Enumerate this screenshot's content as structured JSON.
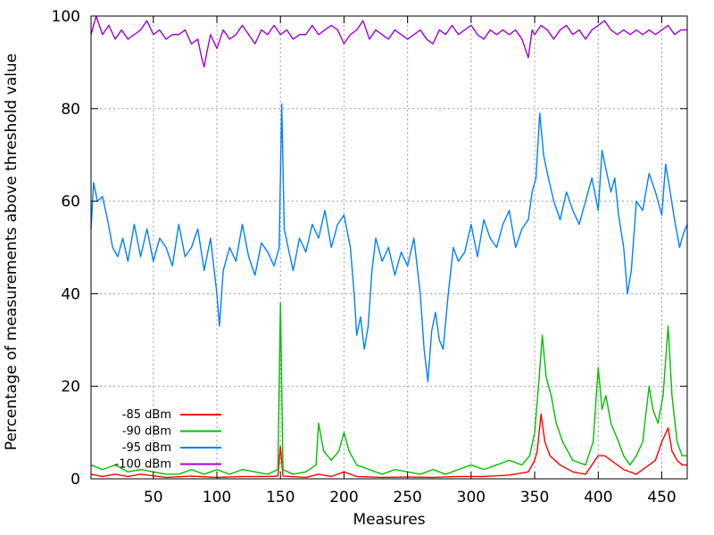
{
  "chart_data": {
    "type": "line",
    "xlabel": "Measures",
    "ylabel": "Percentage of measurements above threshold value",
    "xlim": [
      1,
      470
    ],
    "ylim": [
      0,
      100
    ],
    "x_ticks": [
      50,
      100,
      150,
      200,
      250,
      300,
      350,
      400,
      450
    ],
    "y_ticks": [
      0,
      20,
      40,
      60,
      80,
      100
    ],
    "grid": true,
    "legend_position": "bottom-left",
    "series": [
      {
        "name": "-85 dBm",
        "color": "#ff0000",
        "points": [
          [
            1,
            1
          ],
          [
            10,
            0.5
          ],
          [
            20,
            1
          ],
          [
            30,
            0.5
          ],
          [
            40,
            1
          ],
          [
            60,
            0.3
          ],
          [
            80,
            0.6
          ],
          [
            100,
            0.3
          ],
          [
            120,
            0.5
          ],
          [
            140,
            0.5
          ],
          [
            148,
            0.6
          ],
          [
            150,
            7
          ],
          [
            152,
            0.6
          ],
          [
            170,
            0.3
          ],
          [
            180,
            1
          ],
          [
            190,
            0.5
          ],
          [
            200,
            1.5
          ],
          [
            210,
            0.5
          ],
          [
            230,
            0.3
          ],
          [
            250,
            0.4
          ],
          [
            270,
            0.3
          ],
          [
            290,
            0.5
          ],
          [
            310,
            0.5
          ],
          [
            330,
            0.8
          ],
          [
            345,
            1.5
          ],
          [
            350,
            4
          ],
          [
            352,
            6
          ],
          [
            355,
            14
          ],
          [
            358,
            8
          ],
          [
            362,
            5
          ],
          [
            370,
            3
          ],
          [
            380,
            1.5
          ],
          [
            390,
            1
          ],
          [
            400,
            5
          ],
          [
            405,
            5
          ],
          [
            410,
            4
          ],
          [
            415,
            3
          ],
          [
            420,
            2
          ],
          [
            430,
            1
          ],
          [
            440,
            3
          ],
          [
            445,
            4
          ],
          [
            450,
            8
          ],
          [
            455,
            11
          ],
          [
            458,
            6
          ],
          [
            462,
            4
          ],
          [
            466,
            3
          ],
          [
            470,
            3
          ]
        ]
      },
      {
        "name": "-90 dBm",
        "color": "#00c000",
        "points": [
          [
            1,
            3
          ],
          [
            10,
            2
          ],
          [
            20,
            3
          ],
          [
            30,
            1.5
          ],
          [
            40,
            2
          ],
          [
            50,
            1.5
          ],
          [
            60,
            1
          ],
          [
            70,
            1
          ],
          [
            80,
            2
          ],
          [
            90,
            1
          ],
          [
            100,
            2
          ],
          [
            110,
            1
          ],
          [
            120,
            2
          ],
          [
            130,
            1.5
          ],
          [
            140,
            1
          ],
          [
            148,
            2
          ],
          [
            150,
            38
          ],
          [
            152,
            2
          ],
          [
            160,
            1
          ],
          [
            170,
            1.5
          ],
          [
            178,
            3
          ],
          [
            180,
            12
          ],
          [
            184,
            6
          ],
          [
            190,
            4
          ],
          [
            196,
            6
          ],
          [
            200,
            10
          ],
          [
            204,
            6
          ],
          [
            210,
            3
          ],
          [
            220,
            2
          ],
          [
            230,
            1
          ],
          [
            240,
            2
          ],
          [
            250,
            1.5
          ],
          [
            260,
            1
          ],
          [
            270,
            2
          ],
          [
            280,
            1
          ],
          [
            290,
            2
          ],
          [
            300,
            3
          ],
          [
            310,
            2
          ],
          [
            320,
            3
          ],
          [
            330,
            4
          ],
          [
            340,
            3
          ],
          [
            346,
            5
          ],
          [
            350,
            10
          ],
          [
            353,
            20
          ],
          [
            356,
            31
          ],
          [
            359,
            22
          ],
          [
            363,
            18
          ],
          [
            367,
            12
          ],
          [
            372,
            8
          ],
          [
            380,
            4
          ],
          [
            390,
            3
          ],
          [
            396,
            8
          ],
          [
            400,
            24
          ],
          [
            403,
            15
          ],
          [
            406,
            18
          ],
          [
            410,
            12
          ],
          [
            416,
            8
          ],
          [
            420,
            5
          ],
          [
            425,
            3
          ],
          [
            430,
            5
          ],
          [
            435,
            8
          ],
          [
            440,
            20
          ],
          [
            443,
            15
          ],
          [
            447,
            12
          ],
          [
            451,
            18
          ],
          [
            455,
            33
          ],
          [
            458,
            18
          ],
          [
            462,
            8
          ],
          [
            466,
            5
          ],
          [
            470,
            5
          ]
        ]
      },
      {
        "name": "-95 dBm",
        "color": "#0080ff",
        "points": [
          [
            1,
            54
          ],
          [
            3,
            64
          ],
          [
            6,
            60
          ],
          [
            10,
            61
          ],
          [
            14,
            56
          ],
          [
            18,
            50
          ],
          [
            22,
            48
          ],
          [
            26,
            52
          ],
          [
            30,
            47
          ],
          [
            35,
            55
          ],
          [
            40,
            48
          ],
          [
            45,
            54
          ],
          [
            50,
            47
          ],
          [
            55,
            52
          ],
          [
            60,
            50
          ],
          [
            65,
            46
          ],
          [
            70,
            55
          ],
          [
            75,
            48
          ],
          [
            80,
            50
          ],
          [
            85,
            54
          ],
          [
            90,
            45
          ],
          [
            95,
            52
          ],
          [
            100,
            40
          ],
          [
            102,
            33
          ],
          [
            105,
            45
          ],
          [
            110,
            50
          ],
          [
            115,
            47
          ],
          [
            120,
            55
          ],
          [
            125,
            48
          ],
          [
            130,
            44
          ],
          [
            135,
            51
          ],
          [
            140,
            49
          ],
          [
            145,
            46
          ],
          [
            149,
            50
          ],
          [
            151,
            81
          ],
          [
            153,
            54
          ],
          [
            156,
            50
          ],
          [
            160,
            45
          ],
          [
            165,
            52
          ],
          [
            170,
            49
          ],
          [
            175,
            55
          ],
          [
            180,
            52
          ],
          [
            185,
            58
          ],
          [
            190,
            50
          ],
          [
            195,
            55
          ],
          [
            200,
            57
          ],
          [
            205,
            50
          ],
          [
            208,
            40
          ],
          [
            210,
            31
          ],
          [
            213,
            35
          ],
          [
            216,
            28
          ],
          [
            219,
            33
          ],
          [
            222,
            45
          ],
          [
            225,
            52
          ],
          [
            230,
            47
          ],
          [
            235,
            50
          ],
          [
            240,
            44
          ],
          [
            245,
            49
          ],
          [
            250,
            46
          ],
          [
            255,
            52
          ],
          [
            260,
            40
          ],
          [
            263,
            28
          ],
          [
            266,
            21
          ],
          [
            269,
            32
          ],
          [
            272,
            36
          ],
          [
            275,
            30
          ],
          [
            278,
            28
          ],
          [
            282,
            40
          ],
          [
            286,
            50
          ],
          [
            290,
            47
          ],
          [
            295,
            49
          ],
          [
            300,
            55
          ],
          [
            305,
            48
          ],
          [
            310,
            56
          ],
          [
            315,
            52
          ],
          [
            320,
            50
          ],
          [
            325,
            55
          ],
          [
            330,
            58
          ],
          [
            335,
            50
          ],
          [
            340,
            54
          ],
          [
            345,
            56
          ],
          [
            348,
            62
          ],
          [
            351,
            65
          ],
          [
            354,
            79
          ],
          [
            357,
            70
          ],
          [
            360,
            66
          ],
          [
            365,
            60
          ],
          [
            370,
            56
          ],
          [
            375,
            62
          ],
          [
            380,
            58
          ],
          [
            385,
            55
          ],
          [
            390,
            60
          ],
          [
            395,
            65
          ],
          [
            400,
            58
          ],
          [
            403,
            71
          ],
          [
            406,
            67
          ],
          [
            410,
            62
          ],
          [
            413,
            65
          ],
          [
            416,
            57
          ],
          [
            420,
            50
          ],
          [
            423,
            40
          ],
          [
            426,
            45
          ],
          [
            430,
            60
          ],
          [
            435,
            58
          ],
          [
            440,
            66
          ],
          [
            445,
            62
          ],
          [
            450,
            57
          ],
          [
            453,
            68
          ],
          [
            456,
            63
          ],
          [
            460,
            56
          ],
          [
            464,
            50
          ],
          [
            467,
            53
          ],
          [
            470,
            55
          ]
        ]
      },
      {
        "name": "-100 dBm",
        "color": "#a000e0",
        "points": [
          [
            1,
            96
          ],
          [
            5,
            100
          ],
          [
            10,
            96
          ],
          [
            15,
            98
          ],
          [
            20,
            95
          ],
          [
            25,
            97
          ],
          [
            30,
            95
          ],
          [
            35,
            96
          ],
          [
            40,
            97
          ],
          [
            45,
            99
          ],
          [
            50,
            96
          ],
          [
            55,
            97
          ],
          [
            60,
            95
          ],
          [
            65,
            96
          ],
          [
            70,
            96
          ],
          [
            75,
            97
          ],
          [
            80,
            94
          ],
          [
            85,
            95
          ],
          [
            88,
            91
          ],
          [
            90,
            89
          ],
          [
            92,
            92
          ],
          [
            95,
            96
          ],
          [
            100,
            93
          ],
          [
            105,
            97
          ],
          [
            110,
            95
          ],
          [
            115,
            96
          ],
          [
            120,
            98
          ],
          [
            125,
            96
          ],
          [
            130,
            94
          ],
          [
            135,
            97
          ],
          [
            140,
            96
          ],
          [
            145,
            98
          ],
          [
            150,
            96
          ],
          [
            155,
            97
          ],
          [
            160,
            95
          ],
          [
            165,
            96
          ],
          [
            170,
            96
          ],
          [
            175,
            98
          ],
          [
            180,
            96
          ],
          [
            185,
            97
          ],
          [
            190,
            98
          ],
          [
            195,
            97
          ],
          [
            200,
            94
          ],
          [
            205,
            96
          ],
          [
            210,
            97
          ],
          [
            215,
            99
          ],
          [
            220,
            95
          ],
          [
            225,
            97
          ],
          [
            230,
            96
          ],
          [
            235,
            95
          ],
          [
            240,
            97
          ],
          [
            245,
            96
          ],
          [
            250,
            95
          ],
          [
            255,
            96
          ],
          [
            260,
            97
          ],
          [
            265,
            95
          ],
          [
            270,
            94
          ],
          [
            275,
            97
          ],
          [
            280,
            96
          ],
          [
            285,
            98
          ],
          [
            290,
            96
          ],
          [
            295,
            97
          ],
          [
            300,
            98
          ],
          [
            305,
            96
          ],
          [
            310,
            95
          ],
          [
            315,
            97
          ],
          [
            320,
            96
          ],
          [
            325,
            97
          ],
          [
            330,
            96
          ],
          [
            335,
            97
          ],
          [
            340,
            95
          ],
          [
            345,
            91
          ],
          [
            348,
            97
          ],
          [
            350,
            96
          ],
          [
            355,
            98
          ],
          [
            360,
            97
          ],
          [
            365,
            95
          ],
          [
            370,
            97
          ],
          [
            375,
            98
          ],
          [
            380,
            96
          ],
          [
            385,
            97
          ],
          [
            390,
            95
          ],
          [
            395,
            97
          ],
          [
            400,
            98
          ],
          [
            405,
            99
          ],
          [
            410,
            97
          ],
          [
            415,
            96
          ],
          [
            420,
            97
          ],
          [
            425,
            96
          ],
          [
            430,
            97
          ],
          [
            435,
            96
          ],
          [
            440,
            97
          ],
          [
            445,
            96
          ],
          [
            450,
            97
          ],
          [
            455,
            98
          ],
          [
            460,
            96
          ],
          [
            465,
            97
          ],
          [
            470,
            97
          ]
        ]
      }
    ]
  }
}
